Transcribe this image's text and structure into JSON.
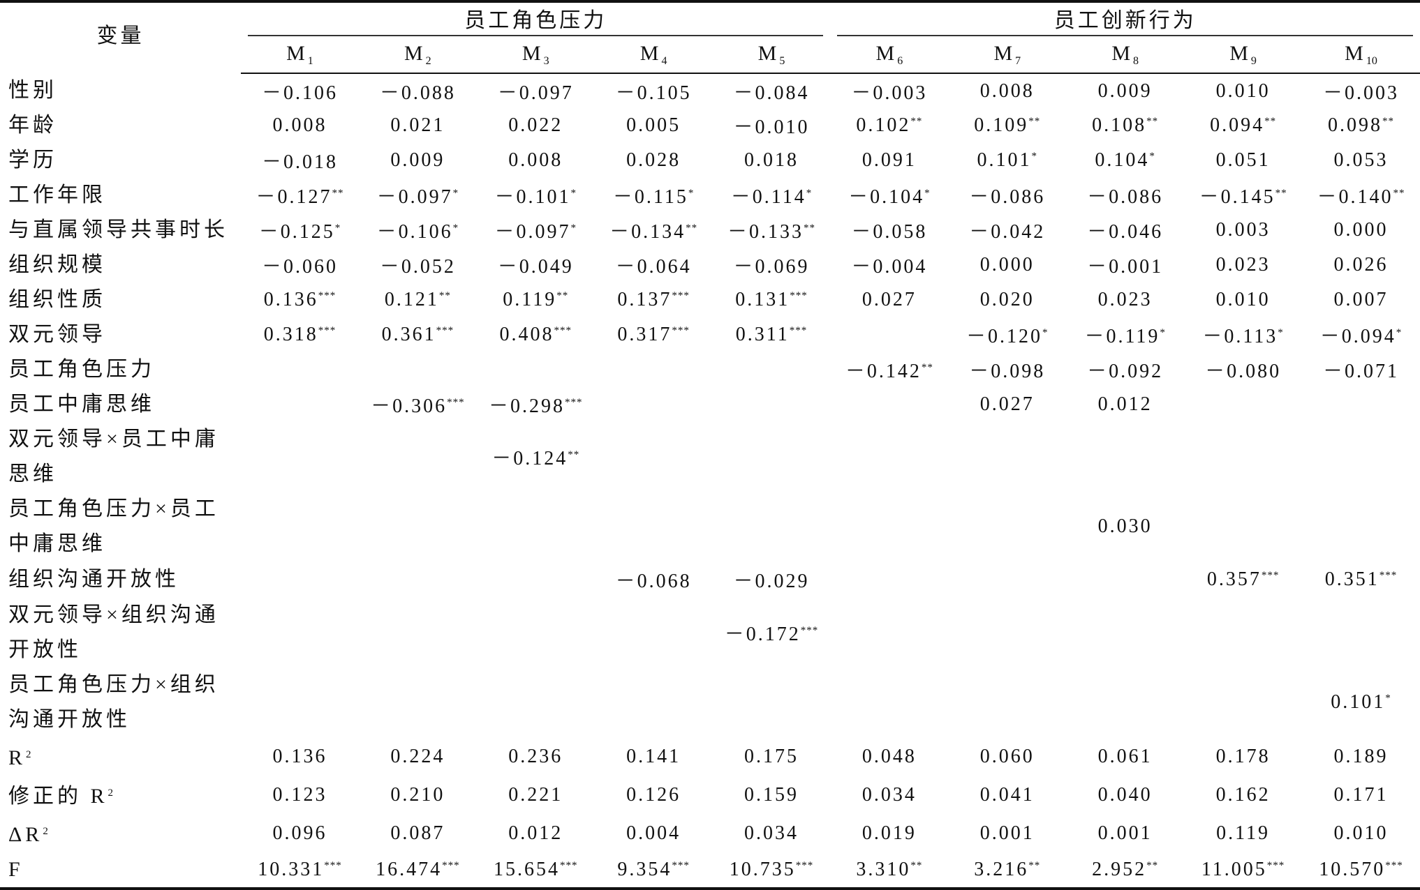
{
  "header": {
    "variable": "变量",
    "groups": [
      {
        "title": "员工角色压力",
        "span": 5
      },
      {
        "title": "员工创新行为",
        "span": 5
      }
    ],
    "models": [
      {
        "base": "M",
        "sub": "1"
      },
      {
        "base": "M",
        "sub": "2"
      },
      {
        "base": "M",
        "sub": "3"
      },
      {
        "base": "M",
        "sub": "4"
      },
      {
        "base": "M",
        "sub": "5"
      },
      {
        "base": "M",
        "sub": "6"
      },
      {
        "base": "M",
        "sub": "7"
      },
      {
        "base": "M",
        "sub": "8"
      },
      {
        "base": "M",
        "sub": "9"
      },
      {
        "base": "M",
        "sub": "10"
      }
    ]
  },
  "table": {
    "rows": [
      {
        "label": "性别",
        "cells": [
          "－0.106",
          "－0.088",
          "－0.097",
          "－0.105",
          "－0.084",
          "－0.003",
          "0.008",
          "0.009",
          "0.010",
          "－0.003"
        ]
      },
      {
        "label": "年龄",
        "cells": [
          "0.008",
          "0.021",
          "0.022",
          "0.005",
          "－0.010",
          {
            "value": "0.102",
            "stars": "**"
          },
          {
            "value": "0.109",
            "stars": "**"
          },
          {
            "value": "0.108",
            "stars": "**"
          },
          {
            "value": "0.094",
            "stars": "**"
          },
          {
            "value": "0.098",
            "stars": "**"
          }
        ]
      },
      {
        "label": "学历",
        "cells": [
          "－0.018",
          "0.009",
          "0.008",
          "0.028",
          "0.018",
          "0.091",
          {
            "value": "0.101",
            "stars": "*"
          },
          {
            "value": "0.104",
            "stars": "*"
          },
          "0.051",
          "0.053"
        ]
      },
      {
        "label": "工作年限",
        "cells": [
          {
            "value": "－0.127",
            "stars": "**"
          },
          {
            "value": "－0.097",
            "stars": "*"
          },
          {
            "value": "－0.101",
            "stars": "*"
          },
          {
            "value": "－0.115",
            "stars": "*"
          },
          {
            "value": "－0.114",
            "stars": "*"
          },
          {
            "value": "－0.104",
            "stars": "*"
          },
          "－0.086",
          "－0.086",
          {
            "value": "－0.145",
            "stars": "**"
          },
          {
            "value": "－0.140",
            "stars": "**"
          }
        ]
      },
      {
        "label": "与直属领导共事时长",
        "cells": [
          {
            "value": "－0.125",
            "stars": "*"
          },
          {
            "value": "－0.106",
            "stars": "*"
          },
          {
            "value": "－0.097",
            "stars": "*"
          },
          {
            "value": "－0.134",
            "stars": "**"
          },
          {
            "value": "－0.133",
            "stars": "**"
          },
          "－0.058",
          "－0.042",
          "－0.046",
          "0.003",
          "0.000"
        ]
      },
      {
        "label": "组织规模",
        "cells": [
          "－0.060",
          "－0.052",
          "－0.049",
          "－0.064",
          "－0.069",
          "－0.004",
          "0.000",
          "－0.001",
          "0.023",
          "0.026"
        ]
      },
      {
        "label": "组织性质",
        "cells": [
          {
            "value": "0.136",
            "stars": "***"
          },
          {
            "value": "0.121",
            "stars": "**"
          },
          {
            "value": "0.119",
            "stars": "**"
          },
          {
            "value": "0.137",
            "stars": "***"
          },
          {
            "value": "0.131",
            "stars": "***"
          },
          "0.027",
          "0.020",
          "0.023",
          "0.010",
          "0.007"
        ]
      },
      {
        "label": "双元领导",
        "cells": [
          {
            "value": "0.318",
            "stars": "***"
          },
          {
            "value": "0.361",
            "stars": "***"
          },
          {
            "value": "0.408",
            "stars": "***"
          },
          {
            "value": "0.317",
            "stars": "***"
          },
          {
            "value": "0.311",
            "stars": "***"
          },
          null,
          {
            "value": "－0.120",
            "stars": "*"
          },
          {
            "value": "－0.119",
            "stars": "*"
          },
          {
            "value": "－0.113",
            "stars": "*"
          },
          {
            "value": "－0.094",
            "stars": "*"
          }
        ]
      },
      {
        "label": "员工角色压力",
        "cells": [
          null,
          null,
          null,
          null,
          null,
          {
            "value": "－0.142",
            "stars": "**"
          },
          "－0.098",
          "－0.092",
          "－0.080",
          "－0.071"
        ]
      },
      {
        "label": "员工中庸思维",
        "cells": [
          null,
          {
            "value": "－0.306",
            "stars": "***"
          },
          {
            "value": "－0.298",
            "stars": "***"
          },
          null,
          null,
          null,
          "0.027",
          "0.012",
          null,
          null
        ]
      },
      {
        "label": "双元领导×员工中庸思维",
        "cells": [
          null,
          null,
          {
            "value": "－0.124",
            "stars": "**"
          },
          null,
          null,
          null,
          null,
          null,
          null,
          null
        ]
      },
      {
        "label": "员工角色压力×员工中庸思维",
        "cells": [
          null,
          null,
          null,
          null,
          null,
          null,
          null,
          "0.030",
          null,
          null
        ]
      },
      {
        "label": "组织沟通开放性",
        "cells": [
          null,
          null,
          null,
          "－0.068",
          "－0.029",
          null,
          null,
          null,
          {
            "value": "0.357",
            "stars": "***"
          },
          {
            "value": "0.351",
            "stars": "***"
          }
        ]
      },
      {
        "label": "双元领导×组织沟通开放性",
        "cells": [
          null,
          null,
          null,
          null,
          {
            "value": "－0.172",
            "stars": "***"
          },
          null,
          null,
          null,
          null,
          null
        ]
      },
      {
        "label": "员工角色压力×组织沟通开放性",
        "cells": [
          null,
          null,
          null,
          null,
          null,
          null,
          null,
          null,
          null,
          {
            "value": "0.101",
            "stars": "*"
          }
        ]
      },
      {
        "label": {
          "base": "R",
          "sup": "2"
        },
        "cells": [
          "0.136",
          "0.224",
          "0.236",
          "0.141",
          "0.175",
          "0.048",
          "0.060",
          "0.061",
          "0.178",
          "0.189"
        ]
      },
      {
        "label": {
          "base": "修正的 R",
          "sup": "2"
        },
        "cells": [
          "0.123",
          "0.210",
          "0.221",
          "0.126",
          "0.159",
          "0.034",
          "0.041",
          "0.040",
          "0.162",
          "0.171"
        ]
      },
      {
        "label": {
          "base": "ΔR",
          "sup": "2"
        },
        "cells": [
          "0.096",
          "0.087",
          "0.012",
          "0.004",
          "0.034",
          "0.019",
          "0.001",
          "0.001",
          "0.119",
          "0.010"
        ]
      },
      {
        "label": "F",
        "cells": [
          {
            "value": "10.331",
            "stars": "***"
          },
          {
            "value": "16.474",
            "stars": "***"
          },
          {
            "value": "15.654",
            "stars": "***"
          },
          {
            "value": "9.354",
            "stars": "***"
          },
          {
            "value": "10.735",
            "stars": "***"
          },
          {
            "value": "3.310",
            "stars": "**"
          },
          {
            "value": "3.216",
            "stars": "**"
          },
          {
            "value": "2.952",
            "stars": "**"
          },
          {
            "value": "11.005",
            "stars": "***"
          },
          {
            "value": "10.570",
            "stars": "***"
          }
        ]
      }
    ]
  }
}
